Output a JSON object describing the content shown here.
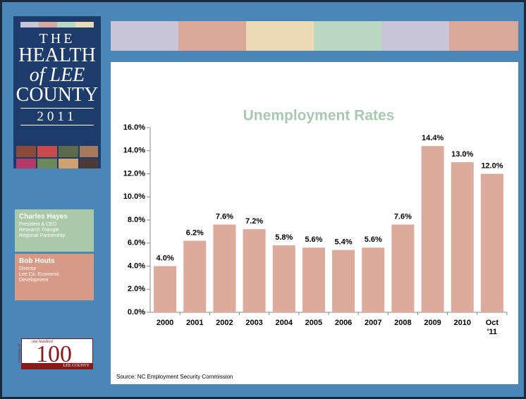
{
  "logo": {
    "lines": [
      "THE",
      "HEALTH",
      "of LEE",
      "COUNTY",
      "2011"
    ]
  },
  "contacts": [
    {
      "name": "Charles Hayes",
      "lines": [
        "President & CEO",
        "Research Triangle",
        "Regional Partnership"
      ]
    },
    {
      "name": "Bob Houts",
      "lines": [
        "Director",
        "Lee Co. Economic",
        "Development"
      ]
    }
  ],
  "badge": {
    "top": "one hundred",
    "side": "committee of",
    "number": "100",
    "bottom": "LEE COUNTY"
  },
  "source": "Source: NC Employment Security Commission",
  "chart_data": {
    "type": "bar",
    "title": "Unemployment Rates",
    "categories": [
      "2000",
      "2001",
      "2002",
      "2003",
      "2004",
      "2005",
      "2006",
      "2007",
      "2008",
      "2009",
      "2010",
      "Oct '11"
    ],
    "values": [
      4.0,
      6.2,
      7.6,
      7.2,
      5.8,
      5.6,
      5.4,
      5.6,
      7.6,
      14.4,
      13.0,
      12.0
    ],
    "value_labels": [
      "4.0%",
      "6.2%",
      "7.6%",
      "7.2%",
      "5.8%",
      "5.6%",
      "5.4%",
      "5.6%",
      "7.6%",
      "14.4%",
      "13.0%",
      "12.0%"
    ],
    "color": "#dcab9b",
    "ylim": [
      0,
      16
    ],
    "yticks": [
      {
        "value": 0,
        "label": "0.0%"
      },
      {
        "value": 2,
        "label": "2.0%"
      },
      {
        "value": 4,
        "label": "4.0%"
      },
      {
        "value": 6,
        "label": "6.0%"
      },
      {
        "value": 8,
        "label": "8.0%"
      },
      {
        "value": 10,
        "label": "10.0%"
      },
      {
        "value": 12,
        "label": "12.0%"
      },
      {
        "value": 14,
        "label": "14.0%"
      },
      {
        "value": 16,
        "label": "16.0%"
      }
    ]
  }
}
